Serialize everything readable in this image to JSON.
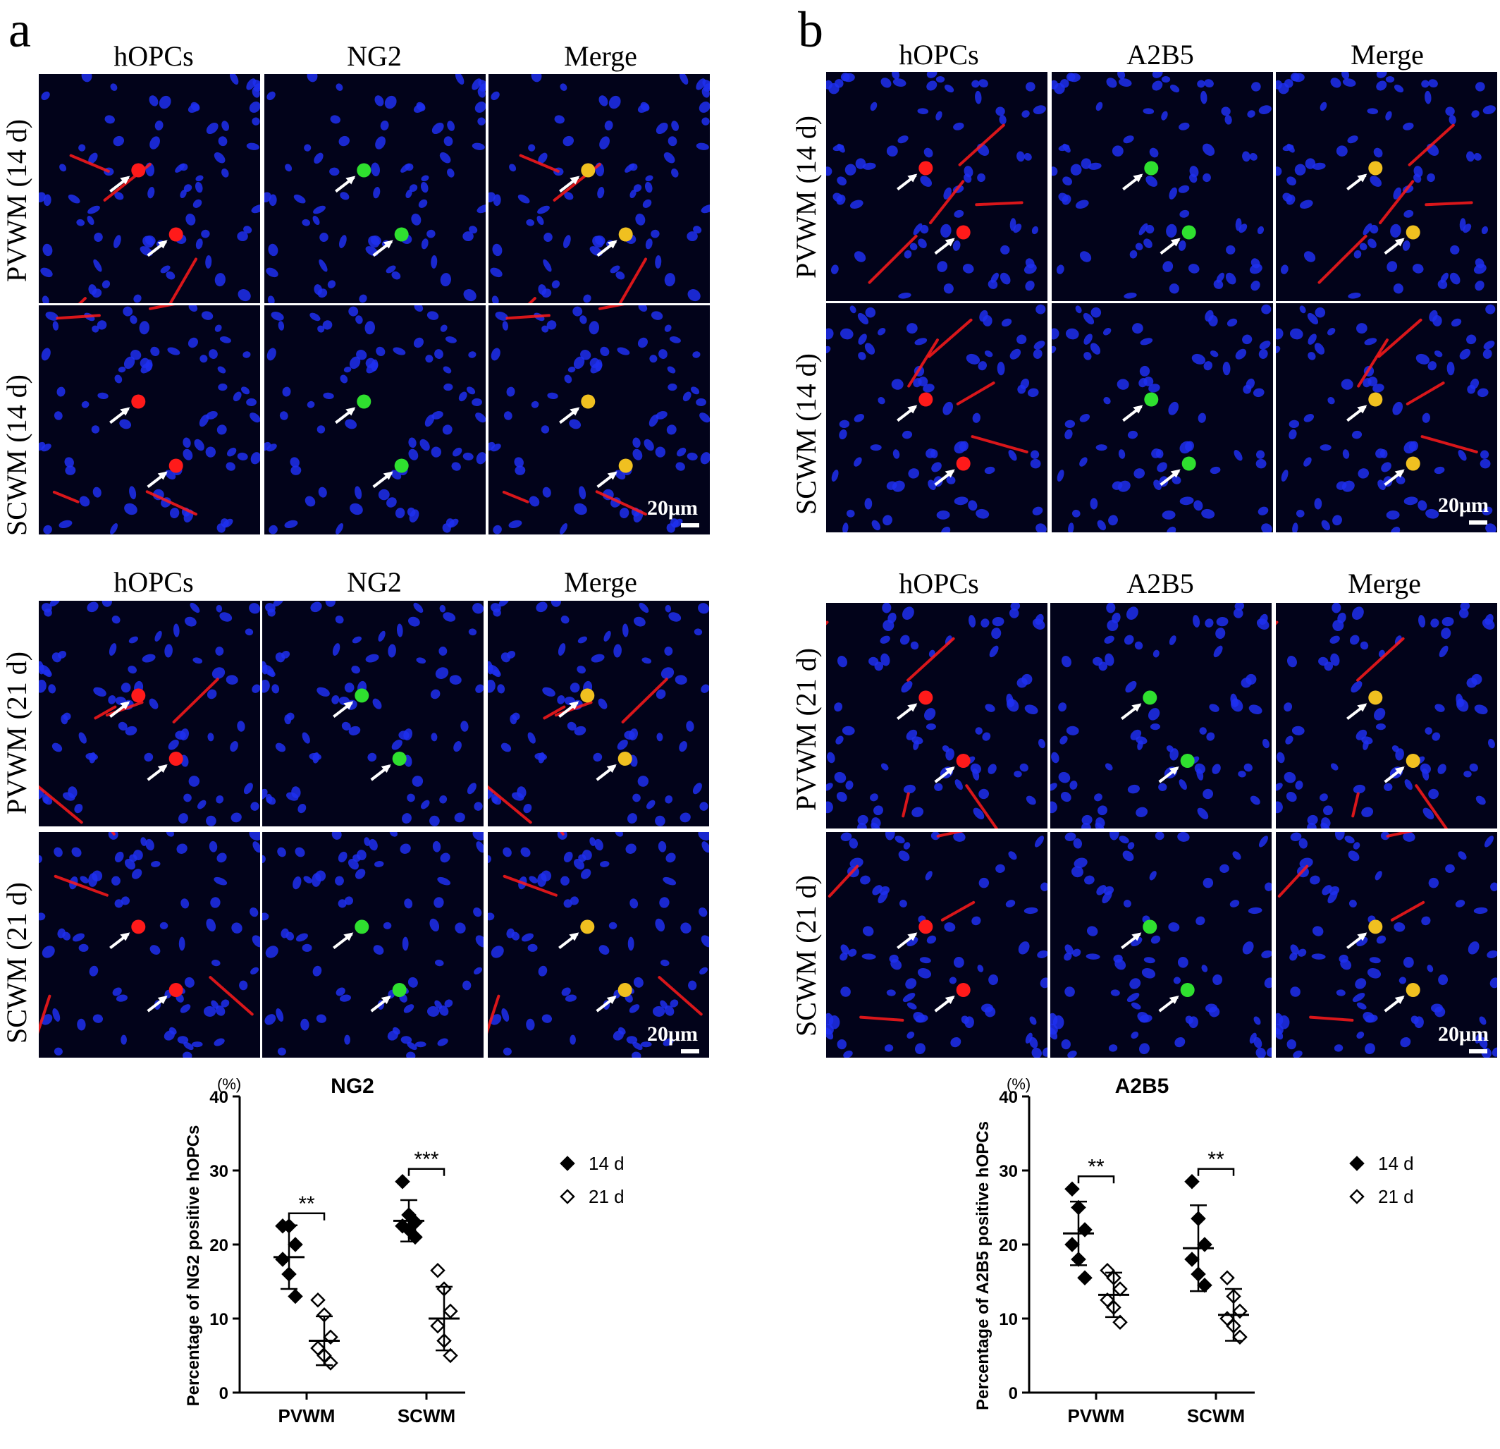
{
  "panels": {
    "a": {
      "letter": "a",
      "top": {
        "columns": [
          "hOPCs",
          "NG2",
          "Merge"
        ],
        "rows": [
          "PVWM (14 d)",
          "SCWM (14 d)"
        ],
        "scalebar": "20μm"
      },
      "bottom": {
        "columns": [
          "hOPCs",
          "NG2",
          "Merge"
        ],
        "rows": [
          "PVWM (21 d)",
          "SCWM (21 d)"
        ],
        "scalebar": "20μm"
      }
    },
    "b": {
      "letter": "b",
      "top": {
        "columns": [
          "hOPCs",
          "A2B5",
          "Merge"
        ],
        "rows": [
          "PVWM (14 d)",
          "SCWM (14 d)"
        ],
        "scalebar": "20μm"
      },
      "bottom": {
        "columns": [
          "hOPCs",
          "A2B5",
          "Merge"
        ],
        "rows": [
          "PVWM (21 d)",
          "SCWM (21 d)"
        ],
        "scalebar": "20μm"
      }
    }
  },
  "colors": {
    "nuclei": "#1f2ff0",
    "hOPCs": "#ff1a1a",
    "marker": "#2fe02f",
    "merge": "#f0c020",
    "arrow": "#ffffff"
  },
  "chart_data": [
    {
      "type": "scatter",
      "title": "NG2",
      "ylabel": "Percentage of NG2 positive hOPCs",
      "yunit": "(%)",
      "ylim": [
        0,
        40
      ],
      "yticks": [
        0,
        10,
        20,
        30,
        40
      ],
      "categories": [
        "PVWM",
        "SCWM"
      ],
      "series": [
        {
          "name": "14 d",
          "marker": "filled-diamond",
          "points": [
            [
              22.5,
              22.5,
              20,
              18,
              16,
              13
            ],
            [
              28.5,
              24,
              23,
              22.5,
              22,
              21
            ]
          ],
          "mean": [
            18.3,
            23.2
          ],
          "sd": [
            4.3,
            2.8
          ]
        },
        {
          "name": "21 d",
          "marker": "open-diamond",
          "points": [
            [
              12.5,
              10.5,
              7.5,
              6,
              5,
              4
            ],
            [
              16.5,
              14,
              11,
              9,
              7,
              5
            ]
          ],
          "mean": [
            7.0,
            10.0
          ],
          "sd": [
            3.3,
            4.3
          ]
        }
      ],
      "significance": [
        "**",
        "***"
      ],
      "legend": [
        "14 d",
        "21 d"
      ],
      "legend_position": "right",
      "grid": false
    },
    {
      "type": "scatter",
      "title": "A2B5",
      "ylabel": "Percentage of A2B5 positive hOPCs",
      "yunit": "(%)",
      "ylim": [
        0,
        40
      ],
      "yticks": [
        0,
        10,
        20,
        30,
        40
      ],
      "categories": [
        "PVWM",
        "SCWM"
      ],
      "series": [
        {
          "name": "14 d",
          "marker": "filled-diamond",
          "points": [
            [
              27.5,
              25,
              22,
              20,
              18,
              15.5
            ],
            [
              28.5,
              23.5,
              20,
              18,
              16,
              14.5
            ]
          ],
          "mean": [
            21.5,
            19.5
          ],
          "sd": [
            4.3,
            5.8
          ]
        },
        {
          "name": "21 d",
          "marker": "open-diamond",
          "points": [
            [
              16.5,
              15.5,
              14,
              12.5,
              11.5,
              9.5
            ],
            [
              15.5,
              13,
              11,
              10,
              9,
              7.5
            ]
          ],
          "mean": [
            13.2,
            10.5
          ],
          "sd": [
            3.0,
            3.5
          ]
        }
      ],
      "significance": [
        "**",
        "**"
      ],
      "legend": [
        "14 d",
        "21 d"
      ],
      "legend_position": "right",
      "grid": false
    }
  ]
}
